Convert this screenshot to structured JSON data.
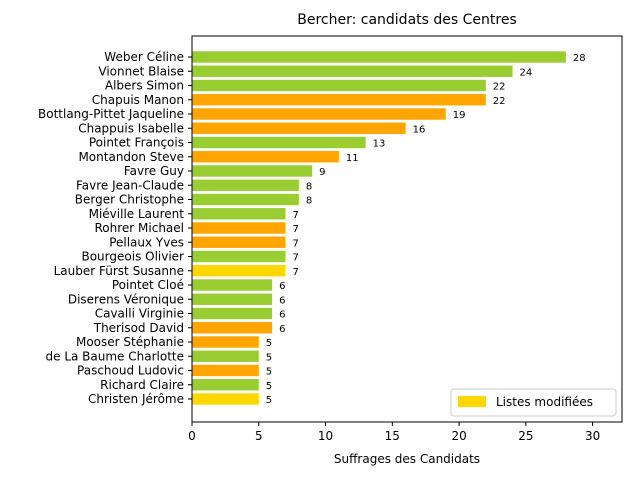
{
  "chart_data": {
    "type": "bar",
    "orientation": "horizontal",
    "title": "Bercher: candidats des Centres",
    "xlabel": "Suffrages des Candidats",
    "ylabel": "",
    "xlim": [
      0,
      32.2
    ],
    "xticks": [
      0,
      5,
      10,
      15,
      20,
      25,
      30
    ],
    "grid": false,
    "colors": {
      "green": "#9acd32",
      "orange": "#ffa500",
      "gold": "#ffd700"
    },
    "legend": {
      "placement": "lower-right",
      "entries": [
        {
          "label": "Listes modifiées",
          "color": "gold"
        }
      ]
    },
    "categories": [
      "Weber Céline",
      "Vionnet Blaise",
      "Albers Simon",
      "Chapuis Manon",
      "Bottlang-Pittet Jaqueline",
      "Chappuis Isabelle",
      "Pointet François",
      "Montandon Steve",
      "Favre Guy",
      "Favre Jean-Claude",
      "Berger Christophe",
      "Miéville Laurent",
      "Rohrer Michael",
      "Pellaux Yves",
      "Bourgeois Olivier",
      "Lauber Fürst Susanne",
      "Pointet Cloé",
      "Diserens Véronique",
      "Cavalli Virginie",
      "Therisod David",
      "Mooser Stéphanie",
      "de La Baume Charlotte",
      "Paschoud Ludovic",
      "Richard Claire",
      "Christen Jérôme"
    ],
    "values": [
      28,
      24,
      22,
      22,
      19,
      16,
      13,
      11,
      9,
      8,
      8,
      7,
      7,
      7,
      7,
      7,
      6,
      6,
      6,
      6,
      5,
      5,
      5,
      5,
      5
    ],
    "bar_colors": [
      "green",
      "green",
      "green",
      "orange",
      "orange",
      "orange",
      "green",
      "orange",
      "green",
      "green",
      "green",
      "green",
      "orange",
      "orange",
      "green",
      "gold",
      "green",
      "green",
      "green",
      "orange",
      "orange",
      "green",
      "orange",
      "green",
      "gold"
    ]
  }
}
